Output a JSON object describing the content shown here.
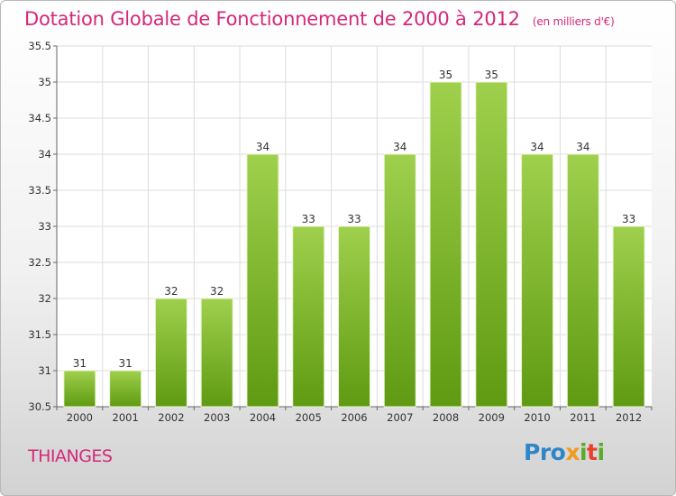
{
  "chart_data": {
    "type": "bar",
    "title": "Dotation Globale de Fonctionnement de 2000 à 2012",
    "subtitle": "(en milliers d'€)",
    "categories": [
      "2000",
      "2001",
      "2002",
      "2003",
      "2004",
      "2005",
      "2006",
      "2007",
      "2008",
      "2009",
      "2010",
      "2011",
      "2012"
    ],
    "values": [
      31,
      31,
      32,
      32,
      34,
      33,
      33,
      34,
      35,
      35,
      34,
      34,
      33
    ],
    "ylim": [
      30.5,
      35.5
    ],
    "yticks": [
      30.5,
      31,
      31.5,
      32,
      32.5,
      33,
      33.5,
      34,
      34.5,
      35,
      35.5
    ],
    "ytick_labels": [
      "30.5",
      "31",
      "31.5",
      "32",
      "32.5",
      "33",
      "33.5",
      "34",
      "34.5",
      "35",
      "35.5"
    ],
    "grid": true,
    "bar_color_top": "#9fd04d",
    "bar_color_bottom": "#5f9a12"
  },
  "commune": "THIANGES",
  "logo": {
    "part1": "Pro",
    "part2": "x",
    "part3": "i",
    "part4": "t",
    "part5": "i"
  }
}
